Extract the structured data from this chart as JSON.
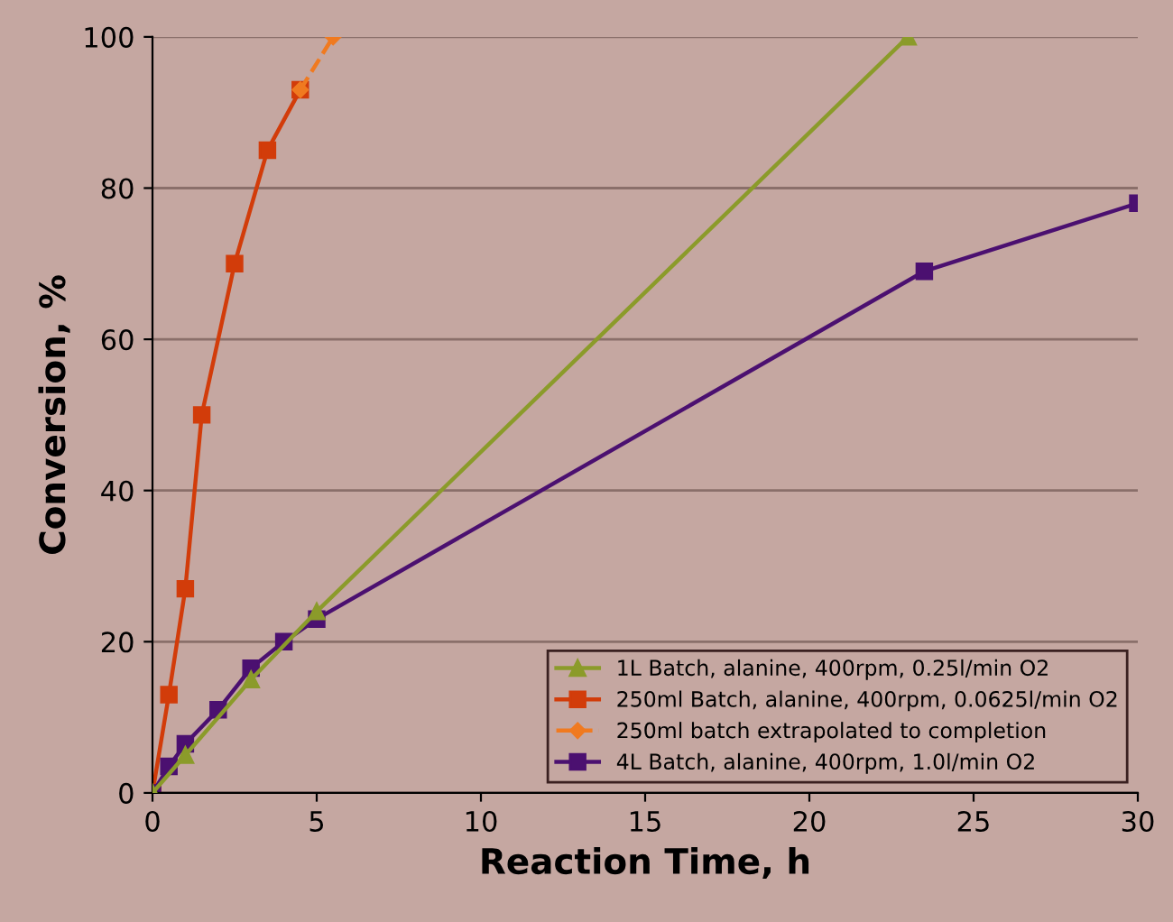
{
  "chart_data": {
    "type": "line",
    "xlabel": "Reaction Time, h",
    "ylabel": "Conversion, %",
    "xlim": [
      0,
      30
    ],
    "ylim": [
      0,
      100
    ],
    "xticks": [
      0,
      5,
      10,
      15,
      20,
      25,
      30
    ],
    "yticks": [
      0,
      20,
      40,
      60,
      80,
      100
    ],
    "grid": "y",
    "legend": "bottom right",
    "series": [
      {
        "name": "1L Batch, alanine, 400rpm, 0.25l/min O2",
        "color": "#8b9b2a",
        "marker": "triangle",
        "line_style": "solid",
        "x": [
          0,
          1,
          3,
          5,
          23
        ],
        "values": [
          0,
          5,
          15,
          24,
          100
        ]
      },
      {
        "name": "250ml Batch, alanine, 400rpm, 0.0625l/min O2",
        "color": "#d23c0a",
        "marker": "square",
        "line_style": "solid",
        "x": [
          0,
          0.5,
          1,
          1.5,
          2.5,
          3.5,
          4.5
        ],
        "values": [
          0,
          13,
          27,
          50,
          70,
          85,
          93
        ]
      },
      {
        "name": "250ml batch extrapolated to completion",
        "color": "#f07a20",
        "marker": "diamond",
        "line_style": "dashed",
        "x": [
          4.5,
          5.5
        ],
        "values": [
          93,
          100
        ]
      },
      {
        "name": "4L Batch, alanine, 400rpm, 1.0l/min O2",
        "color": "#4b1070",
        "marker": "square",
        "line_style": "solid",
        "x": [
          0,
          0.5,
          1,
          2,
          3,
          4,
          5,
          23.5,
          30
        ],
        "values": [
          0,
          3.5,
          6.5,
          11,
          16.5,
          20,
          23,
          69,
          78
        ]
      }
    ]
  }
}
